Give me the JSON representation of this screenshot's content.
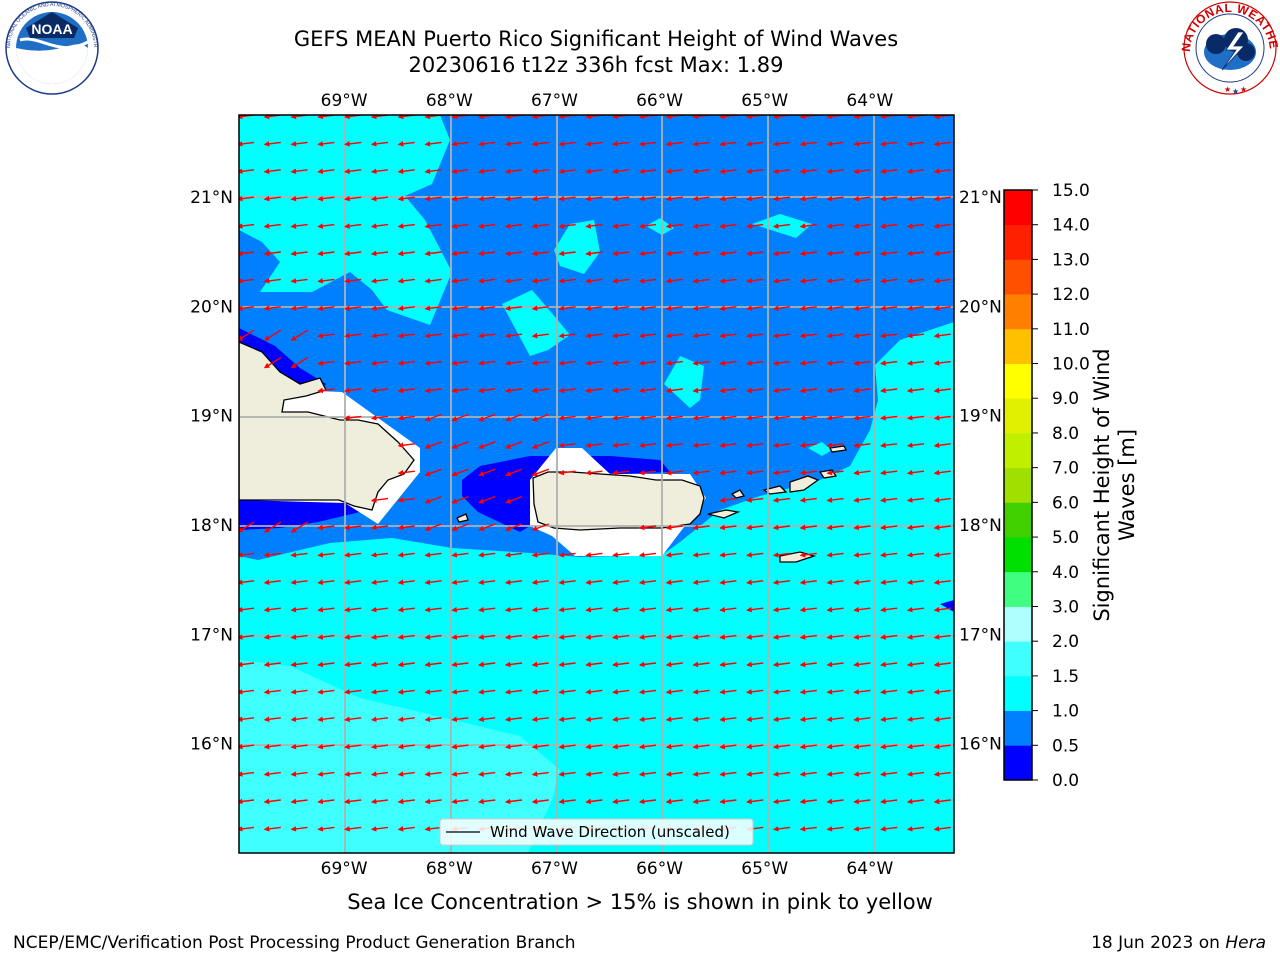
{
  "title": {
    "line1": "GEFS MEAN Puerto Rico Significant Height of Wind Waves",
    "line2": "20230616 t12z 336h fcst   Max: 1.89"
  },
  "logos": {
    "left": "NOAA",
    "left_ring_text": "NATIONAL OCEANIC AND ATMOSPHERIC ADMINISTRATION · U.S. DEPARTMENT OF COMMERCE",
    "right_ring_text": "NATIONAL WEATHER SERVICE",
    "left_icon": "noaa-logo-icon",
    "right_icon": "nws-logo-icon"
  },
  "caption": "Sea Ice Concentration > 15% is shown in pink to yellow",
  "footer": {
    "left": "NCEP/EMC/Verification Post Processing Product Generation Branch",
    "right_date": "18 Jun 2023 on ",
    "right_host": "Hera"
  },
  "legend": {
    "label": "Wind Wave Direction (unscaled)"
  },
  "colorbar": {
    "label_line1": "Significant Height of Wind",
    "label_line2": "Waves [m]",
    "ticks": [
      "0.0",
      "0.5",
      "1.0",
      "1.5",
      "2.0",
      "3.0",
      "4.0",
      "5.0",
      "6.0",
      "7.0",
      "8.0",
      "9.0",
      "10.0",
      "11.0",
      "12.0",
      "13.0",
      "14.0",
      "15.0"
    ],
    "colors": [
      "#0000ff",
      "#0080ff",
      "#00ffff",
      "#40ffff",
      "#b0ffff",
      "#40ff80",
      "#00e000",
      "#40d000",
      "#a0e000",
      "#c0f000",
      "#e0f000",
      "#ffff00",
      "#ffc000",
      "#ff8000",
      "#ff5000",
      "#ff2000",
      "#ff0000"
    ]
  },
  "chart_data": {
    "type": "heatmap",
    "title": "GEFS MEAN Puerto Rico Significant Height of Wind Waves",
    "subtitle": "20230616 t12z 336h fcst   Max: 1.89",
    "max_value": 1.89,
    "units": "m",
    "xlim": [
      -70.0,
      -63.2
    ],
    "ylim": [
      15.0,
      21.75
    ],
    "x_ticks": [
      {
        "value": -69,
        "label": "69°W"
      },
      {
        "value": -68,
        "label": "68°W"
      },
      {
        "value": -67,
        "label": "67°W"
      },
      {
        "value": -66,
        "label": "66°W"
      },
      {
        "value": -65,
        "label": "65°W"
      },
      {
        "value": -64,
        "label": "64°W"
      }
    ],
    "y_ticks": [
      {
        "value": 21,
        "label": "21°N"
      },
      {
        "value": 20,
        "label": "20°N"
      },
      {
        "value": 19,
        "label": "19°N"
      },
      {
        "value": 18,
        "label": "18°N"
      },
      {
        "value": 17,
        "label": "17°N"
      },
      {
        "value": 16,
        "label": "16°N"
      }
    ],
    "levels": [
      0.0,
      0.5,
      1.0,
      1.5,
      2.0,
      3.0,
      4.0,
      5.0,
      6.0,
      7.0,
      8.0,
      9.0,
      10.0,
      11.0,
      12.0,
      13.0,
      14.0,
      15.0
    ],
    "grid": true,
    "vector_field": "Wind Wave Direction (unscaled)",
    "dominant_direction": "toward west",
    "regions": [
      {
        "name": "north waters",
        "range_m": [
          0.5,
          1.0
        ]
      },
      {
        "name": "scattered northern patches",
        "range_m": [
          1.0,
          1.5
        ]
      },
      {
        "name": "south waters",
        "range_m": [
          1.0,
          1.5
        ]
      },
      {
        "name": "southwest patch",
        "range_m": [
          1.5,
          2.0
        ]
      },
      {
        "name": "lee of Hispaniola and Puerto Rico",
        "range_m": [
          0.0,
          0.5
        ]
      }
    ]
  }
}
